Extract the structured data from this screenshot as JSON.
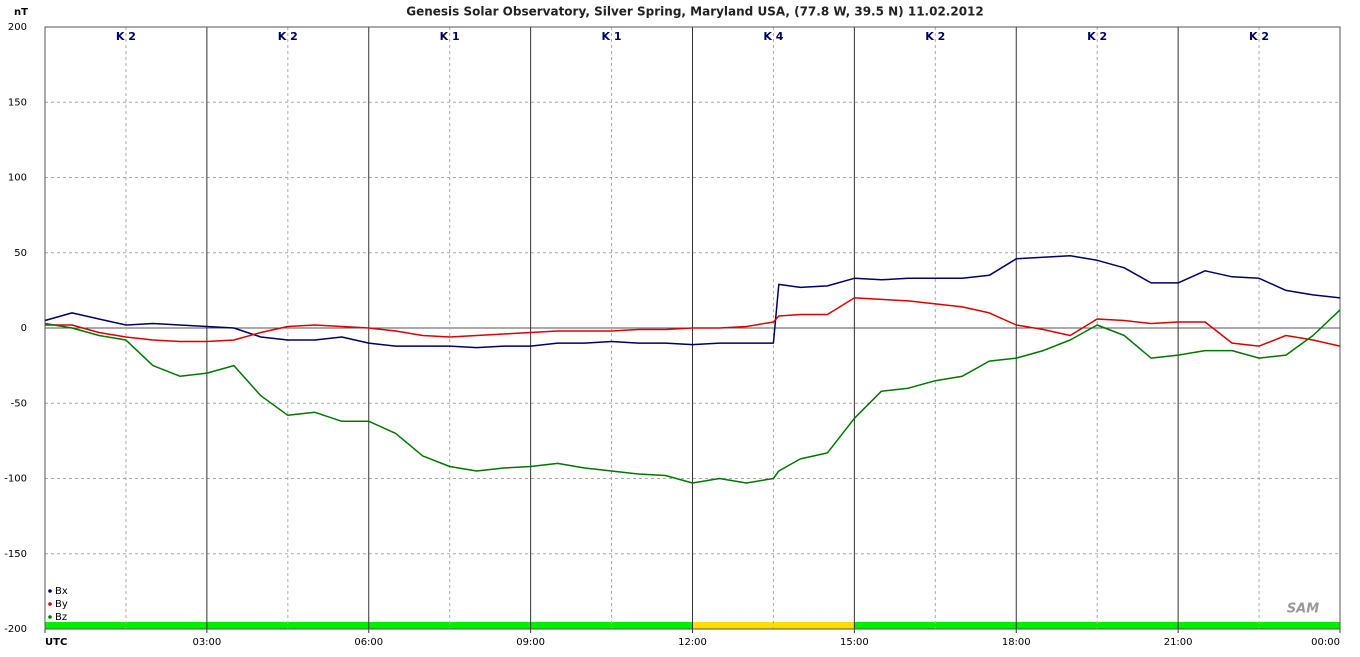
{
  "chart_data": {
    "type": "line",
    "title": "Genesis Solar Observatory, Silver Spring, Maryland USA, (77.8 W, 39.5 N)  11.02.2012",
    "ylabel": "nT",
    "logo": "SAM",
    "x": [
      0,
      0.5,
      1,
      1.5,
      2,
      2.5,
      3,
      3.5,
      4,
      4.5,
      5,
      5.5,
      6,
      6.5,
      7,
      7.5,
      8,
      8.5,
      9,
      9.5,
      10,
      10.5,
      11,
      11.5,
      12,
      12.5,
      13,
      13.5,
      13.6,
      14,
      14.5,
      15,
      15.5,
      16,
      16.5,
      17,
      17.5,
      18,
      18.5,
      19,
      19.5,
      20,
      20.5,
      21,
      21.5,
      22,
      22.5,
      23,
      23.5,
      24
    ],
    "series": [
      {
        "name": "Bx",
        "color": "#000066",
        "values": [
          5,
          10,
          6,
          2,
          3,
          2,
          1,
          0,
          -6,
          -8,
          -8,
          -6,
          -10,
          -12,
          -12,
          -12,
          -13,
          -12,
          -12,
          -10,
          -10,
          -9,
          -10,
          -10,
          -11,
          -10,
          -10,
          -10,
          29,
          27,
          28,
          33,
          32,
          33,
          33,
          33,
          35,
          46,
          47,
          48,
          45,
          40,
          30,
          30,
          38,
          34,
          33,
          25,
          22,
          20
        ]
      },
      {
        "name": "By",
        "color": "#dd0000",
        "values": [
          2,
          2,
          -3,
          -6,
          -8,
          -9,
          -9,
          -8,
          -3,
          1,
          2,
          1,
          0,
          -2,
          -5,
          -6,
          -5,
          -4,
          -3,
          -2,
          -2,
          -2,
          -1,
          -1,
          0,
          0,
          1,
          4,
          8,
          9,
          9,
          20,
          19,
          18,
          16,
          14,
          10,
          2,
          -1,
          -5,
          6,
          5,
          3,
          4,
          4,
          -10,
          -12,
          -5,
          -8,
          -12
        ]
      },
      {
        "name": "Bz",
        "color": "#007700",
        "values": [
          3,
          0,
          -5,
          -8,
          -25,
          -32,
          -30,
          -25,
          -45,
          -58,
          -56,
          -62,
          -62,
          -70,
          -85,
          -92,
          -95,
          -93,
          -92,
          -90,
          -93,
          -95,
          -97,
          -98,
          -103,
          -100,
          -103,
          -100,
          -95,
          -87,
          -83,
          -60,
          -42,
          -40,
          -35,
          -32,
          -22,
          -20,
          -15,
          -8,
          2,
          -5,
          -20,
          -18,
          -15,
          -15,
          -20,
          -18,
          -5,
          12
        ]
      }
    ],
    "xlim": [
      0,
      24
    ],
    "xticks": [
      {
        "value": 0,
        "label": "UTC"
      },
      {
        "value": 3,
        "label": "03:00"
      },
      {
        "value": 6,
        "label": "06:00"
      },
      {
        "value": 9,
        "label": "09:00"
      },
      {
        "value": 12,
        "label": "12:00"
      },
      {
        "value": 15,
        "label": "15:00"
      },
      {
        "value": 18,
        "label": "18:00"
      },
      {
        "value": 21,
        "label": "21:00"
      },
      {
        "value": 24,
        "label": "00:00"
      }
    ],
    "xgrid_minor": [
      1.5,
      4.5,
      7.5,
      10.5,
      13.5,
      16.5,
      19.5,
      22.5
    ],
    "ylim": [
      -200,
      200
    ],
    "yticks": [
      -200,
      -150,
      -100,
      -50,
      0,
      50,
      100,
      150,
      200
    ],
    "k_index": [
      "K 2",
      "K 2",
      "K 1",
      "K 1",
      "K 4",
      "K 2",
      "K 2",
      "K 2"
    ],
    "status_colors": [
      "#00ee00",
      "#00ee00",
      "#00ee00",
      "#00ee00",
      "#ffdd00",
      "#00ee00",
      "#00ee00",
      "#00ee00"
    ],
    "grid": true,
    "legend": "lower left"
  }
}
